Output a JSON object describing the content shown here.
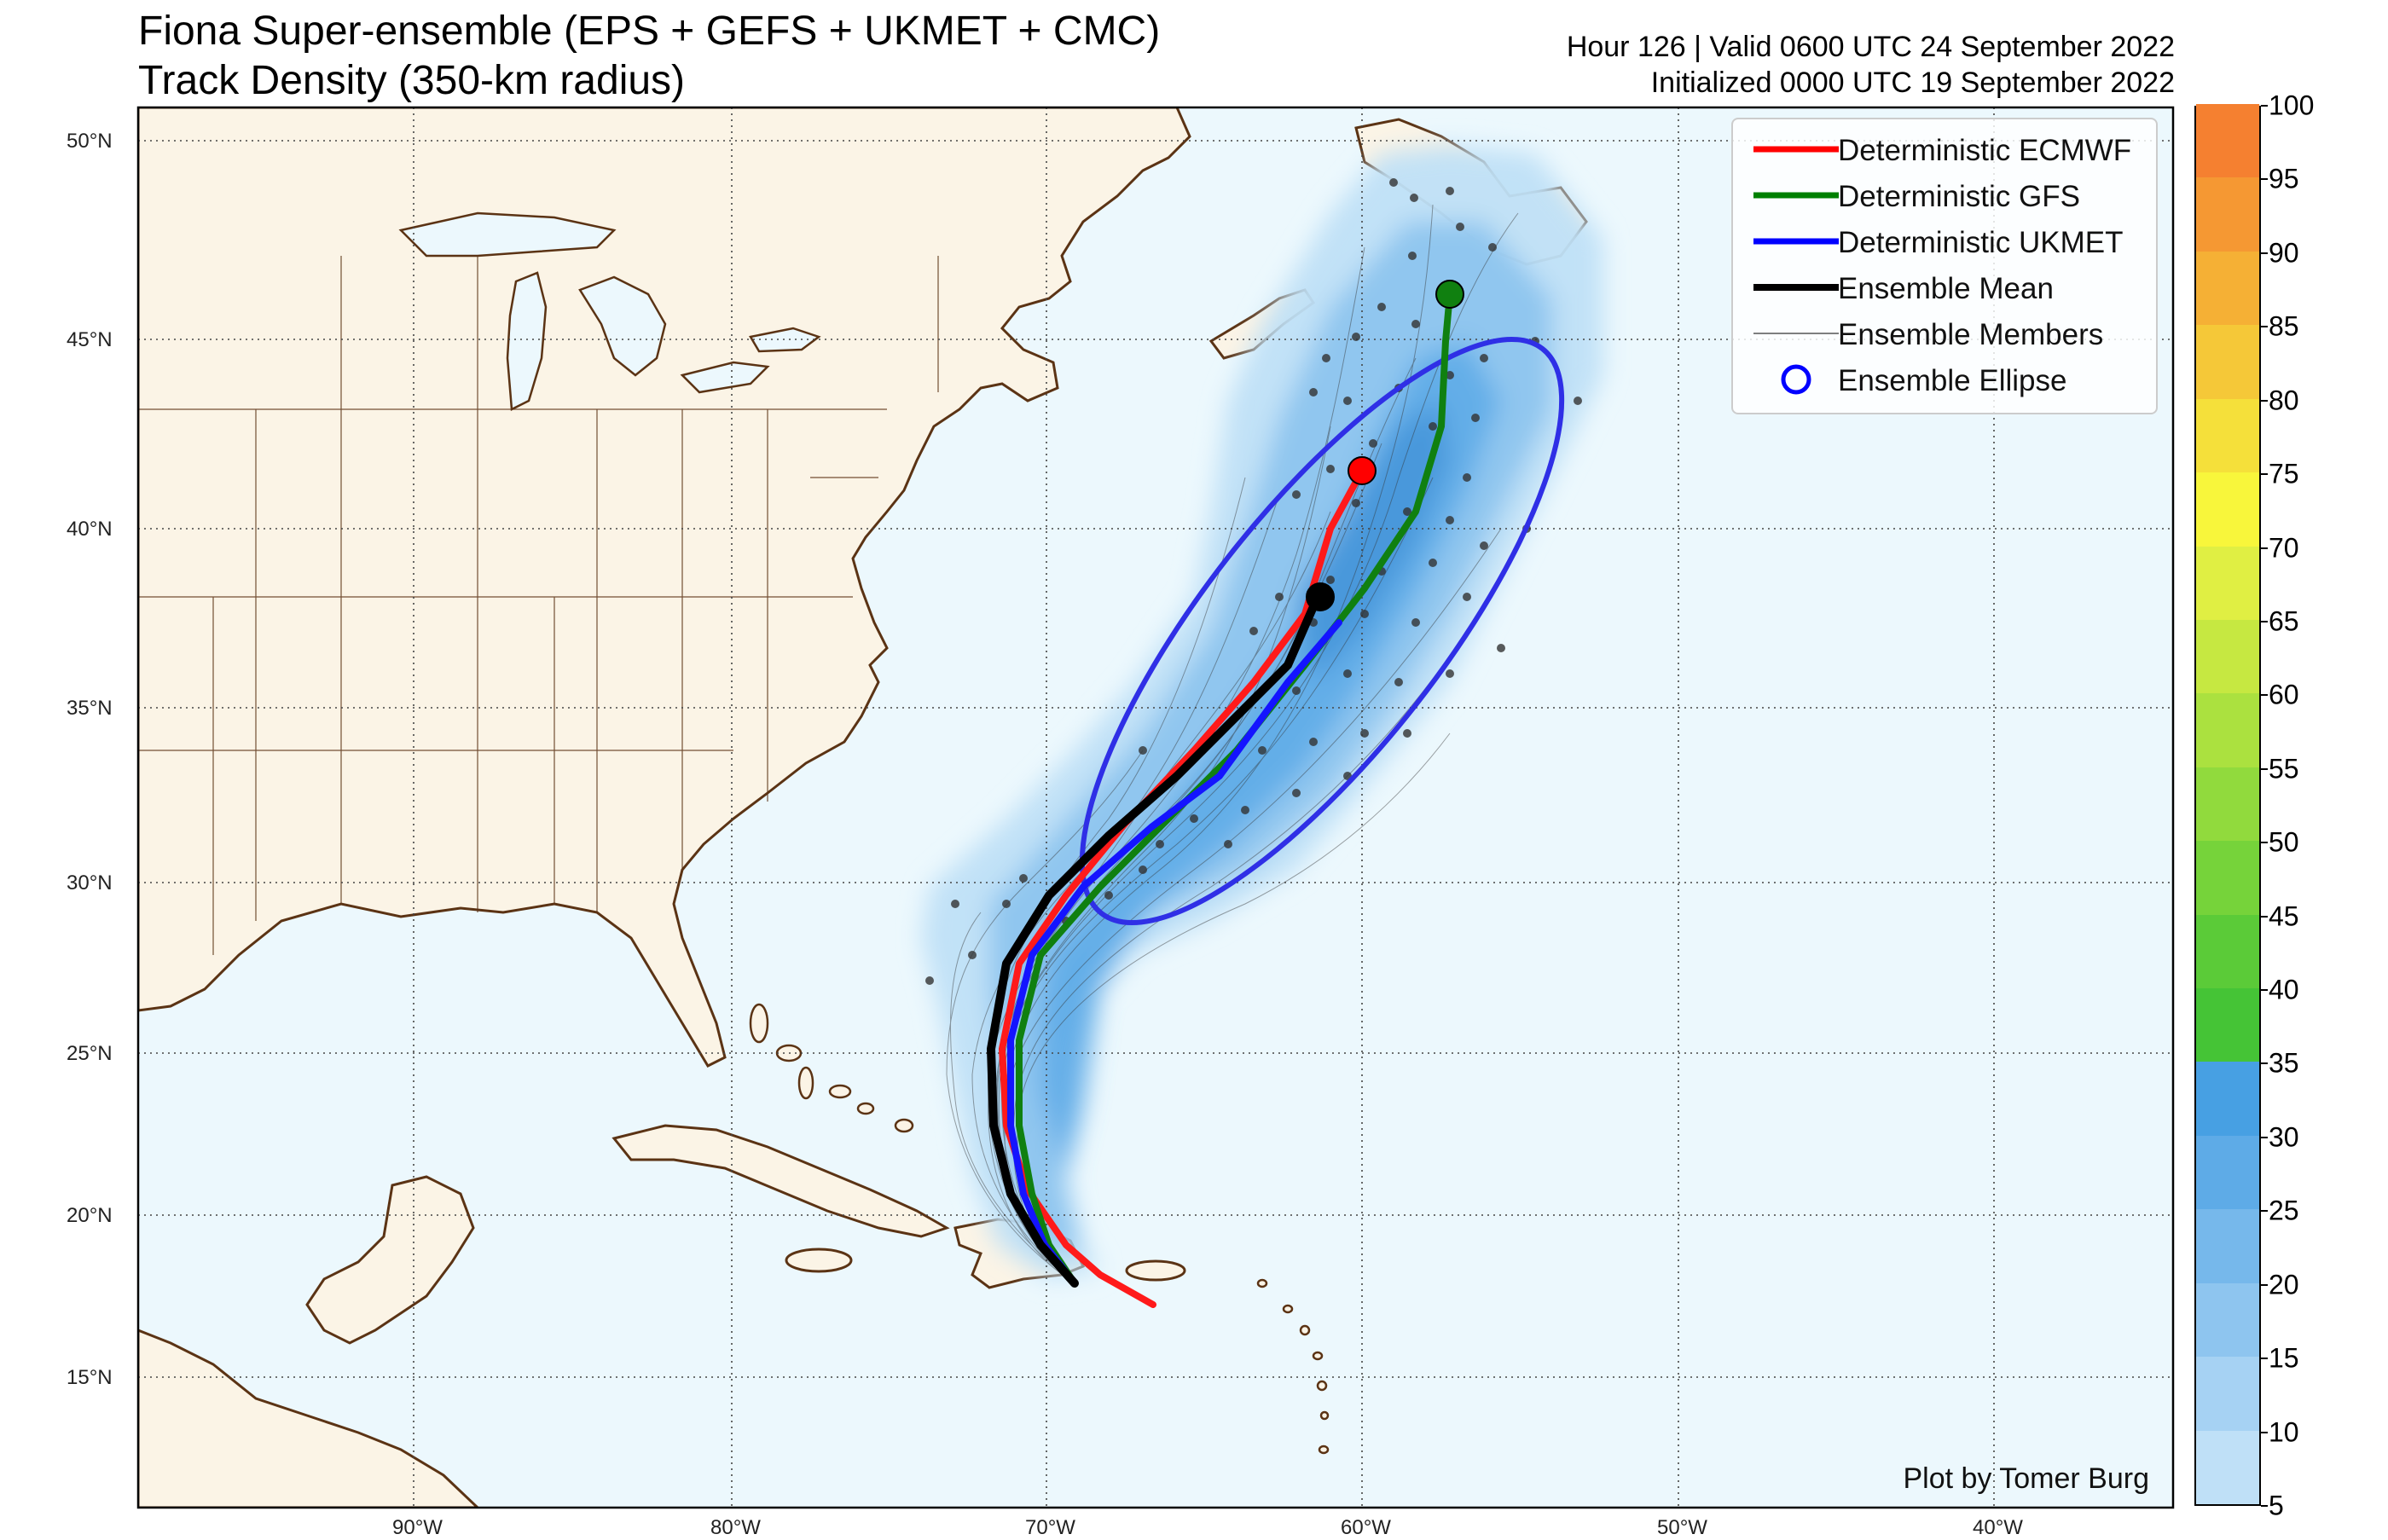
{
  "title": {
    "line1": "Fiona Super-ensemble (EPS + GEFS + UKMET + CMC)",
    "line2": "Track Density (350-km radius)",
    "right1": "Hour 126 | Valid 0600 UTC 24 September 2022",
    "right2": "Initialized 0000 UTC 19 September 2022"
  },
  "credit": "Plot by Tomer Burg",
  "legend": [
    {
      "label": "Deterministic ECMWF",
      "color": "#ff0000",
      "kind": "line-thick"
    },
    {
      "label": "Deterministic GFS",
      "color": "#008000",
      "kind": "line-thick"
    },
    {
      "label": "Deterministic UKMET",
      "color": "#0000ff",
      "kind": "line-thick"
    },
    {
      "label": "Ensemble Mean",
      "color": "#000000",
      "kind": "line-thick"
    },
    {
      "label": "Ensemble Members",
      "color": "#555555",
      "kind": "line-thin"
    },
    {
      "label": "Ensemble Ellipse",
      "color": "#0000ff",
      "kind": "circle"
    }
  ],
  "lat_labels": [
    "50°N",
    "45°N",
    "40°N",
    "35°N",
    "30°N",
    "25°N",
    "20°N",
    "15°N"
  ],
  "lon_labels": [
    "90°W",
    "80°W",
    "70°W",
    "60°W",
    "50°W",
    "40°W"
  ],
  "colorbar": {
    "ticks": [
      "5",
      "10",
      "15",
      "20",
      "25",
      "30",
      "35",
      "40",
      "45",
      "50",
      "55",
      "60",
      "65",
      "70",
      "75",
      "80",
      "85",
      "90",
      "95",
      "100"
    ],
    "colors": [
      "#bfe0f7",
      "#a6d2f3",
      "#8ec5ef",
      "#76b8eb",
      "#5eabe7",
      "#47a0e3",
      "#45c436",
      "#5bcb38",
      "#76d33a",
      "#91da3d",
      "#abe13f",
      "#c6e841",
      "#e0ef43",
      "#f8f63b",
      "#f5e03a",
      "#f5c838",
      "#f5b035",
      "#f59833",
      "#f58030",
      "#f4362e"
    ]
  },
  "colors": {
    "land": "#fbf4e6",
    "ocean": "#ecf8fd",
    "coast": "#5b3314",
    "density_low": "#bfe0f7",
    "density_high": "#3d8fd6"
  },
  "tracks": {
    "ecmwf": [
      [
        -66.5,
        17.3
      ],
      [
        -68.2,
        18.4
      ],
      [
        -69.6,
        19.7
      ],
      [
        -71.2,
        22.2
      ],
      [
        -71.6,
        24.8
      ],
      [
        -71.0,
        27.6
      ],
      [
        -69.3,
        30.5
      ],
      [
        -66.5,
        32.6
      ],
      [
        -63.4,
        35.0
      ],
      [
        -61.0,
        38.6
      ],
      [
        -60.1,
        41.4
      ]
    ],
    "gfs": [
      [
        -68.3,
        18.2
      ],
      [
        -69.1,
        19.4
      ],
      [
        -70.6,
        21.8
      ],
      [
        -71.3,
        24.6
      ],
      [
        -70.4,
        27.8
      ],
      [
        -68.2,
        30.8
      ],
      [
        -64.6,
        33.0
      ],
      [
        -60.8,
        36.3
      ],
      [
        -58.8,
        39.4
      ],
      [
        -57.8,
        41.8
      ],
      [
        -57.3,
        44.6
      ],
      [
        -57.2,
        46.0
      ]
    ],
    "ukmet": [
      [
        -68.3,
        18.2
      ],
      [
        -69.4,
        19.5
      ],
      [
        -70.9,
        21.8
      ],
      [
        -71.6,
        24.6
      ],
      [
        -70.9,
        27.6
      ],
      [
        -68.8,
        30.5
      ],
      [
        -65.6,
        32.8
      ],
      [
        -62.3,
        35.2
      ],
      [
        -60.9,
        37.2
      ]
    ],
    "mean": [
      [
        -68.3,
        18.2
      ],
      [
        -69.5,
        19.5
      ],
      [
        -71.1,
        21.8
      ],
      [
        -71.9,
        24.6
      ],
      [
        -71.4,
        27.4
      ],
      [
        -69.8,
        29.9
      ],
      [
        -67.4,
        31.9
      ],
      [
        -64.9,
        33.7
      ],
      [
        -62.9,
        35.8
      ],
      [
        -61.3,
        38.0
      ]
    ]
  },
  "markers": {
    "ecmwf": [
      -60.1,
      41.4
    ],
    "gfs": [
      -57.2,
      46.0
    ],
    "mean": [
      -61.3,
      38.1
    ]
  },
  "ellipse": {
    "center_lon": -60.7,
    "center_lat": 37.6,
    "rx": 15.2,
    "ry": 4.6,
    "rot_deg": -52
  }
}
